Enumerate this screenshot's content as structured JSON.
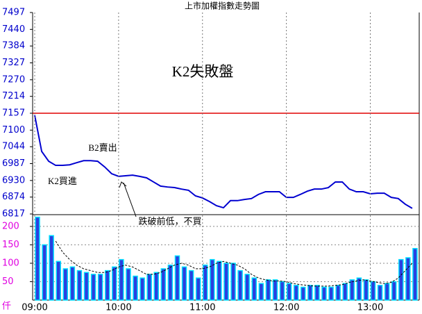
{
  "chart_data": [
    {
      "type": "line",
      "title": "上市加權指數走勢圖",
      "annotations": [
        "K2失敗盤",
        "B2賣出",
        "K2買進",
        "跌破前低，不買"
      ],
      "ylim": [
        6817,
        7497
      ],
      "yticks": [
        7497,
        7440,
        7384,
        7327,
        7270,
        7214,
        7157,
        7100,
        7044,
        6987,
        6930,
        6874,
        6817
      ],
      "xlim": [
        0,
        275
      ],
      "hline": {
        "value": 7157,
        "color": "#e00000"
      },
      "x": [
        0,
        5,
        10,
        15,
        20,
        25,
        30,
        35,
        40,
        45,
        50,
        55,
        60,
        65,
        70,
        75,
        80,
        85,
        90,
        95,
        100,
        105,
        110,
        115,
        120,
        125,
        130,
        135,
        140,
        145,
        150,
        155,
        160,
        165,
        170,
        175,
        180,
        185,
        190,
        195,
        200,
        205,
        210,
        215,
        220,
        225,
        230,
        235,
        240,
        245,
        250,
        255,
        260,
        265,
        270
      ],
      "series": [
        {
          "color": "#0000d0",
          "values": [
            7150,
            7028,
            6995,
            6981,
            6981,
            6983,
            6990,
            6997,
            6997,
            6995,
            6976,
            6953,
            6944,
            6946,
            6948,
            6944,
            6939,
            6925,
            6911,
            6908,
            6906,
            6901,
            6897,
            6878,
            6871,
            6859,
            6845,
            6838,
            6862,
            6862,
            6866,
            6869,
            6883,
            6892,
            6892,
            6892,
            6873,
            6873,
            6883,
            6894,
            6901,
            6901,
            6906,
            6925,
            6925,
            6901,
            6892,
            6892,
            6885,
            6887,
            6887,
            6873,
            6869,
            6850,
            6836
          ]
        }
      ]
    },
    {
      "type": "bar",
      "unit": "仟",
      "ylim": [
        0,
        230
      ],
      "yticks": [
        50,
        100,
        150,
        200
      ],
      "grid": true,
      "xlim": [
        0,
        275
      ],
      "xticks": [
        {
          "value": 0,
          "label": "09:00"
        },
        {
          "value": 60,
          "label": "10:00"
        },
        {
          "value": 120,
          "label": "11:00"
        },
        {
          "value": 180,
          "label": "12:00"
        },
        {
          "value": 240,
          "label": "13:00"
        }
      ],
      "x": [
        0,
        5,
        10,
        15,
        20,
        25,
        30,
        35,
        40,
        45,
        50,
        55,
        60,
        65,
        70,
        75,
        80,
        85,
        90,
        95,
        100,
        105,
        110,
        115,
        120,
        125,
        130,
        135,
        140,
        145,
        150,
        155,
        160,
        165,
        170,
        175,
        180,
        185,
        190,
        195,
        200,
        205,
        210,
        215,
        220,
        225,
        230,
        235,
        240,
        245,
        250,
        255,
        260,
        265,
        270
      ],
      "series": [
        {
          "color": "#2a3fe0",
          "values": [
            225,
            150,
            175,
            105,
            85,
            90,
            80,
            75,
            70,
            70,
            80,
            90,
            110,
            85,
            65,
            60,
            70,
            75,
            85,
            95,
            120,
            90,
            80,
            60,
            95,
            110,
            105,
            100,
            100,
            80,
            70,
            60,
            45,
            55,
            55,
            50,
            45,
            40,
            35,
            40,
            40,
            35,
            35,
            40,
            45,
            55,
            60,
            55,
            50,
            40,
            45,
            50,
            110,
            115,
            140
          ]
        },
        {
          "color": "#000000",
          "dashed": true,
          "values": [
            null,
            null,
            null,
            160,
            130,
            110,
            95,
            85,
            80,
            75,
            75,
            80,
            90,
            95,
            90,
            80,
            70,
            70,
            75,
            85,
            95,
            100,
            95,
            85,
            85,
            90,
            100,
            105,
            100,
            95,
            85,
            70,
            60,
            55,
            52,
            52,
            50,
            45,
            42,
            40,
            38,
            38,
            38,
            40,
            42,
            48,
            52,
            55,
            52,
            48,
            45,
            48,
            60,
            80,
            100
          ]
        }
      ]
    }
  ]
}
